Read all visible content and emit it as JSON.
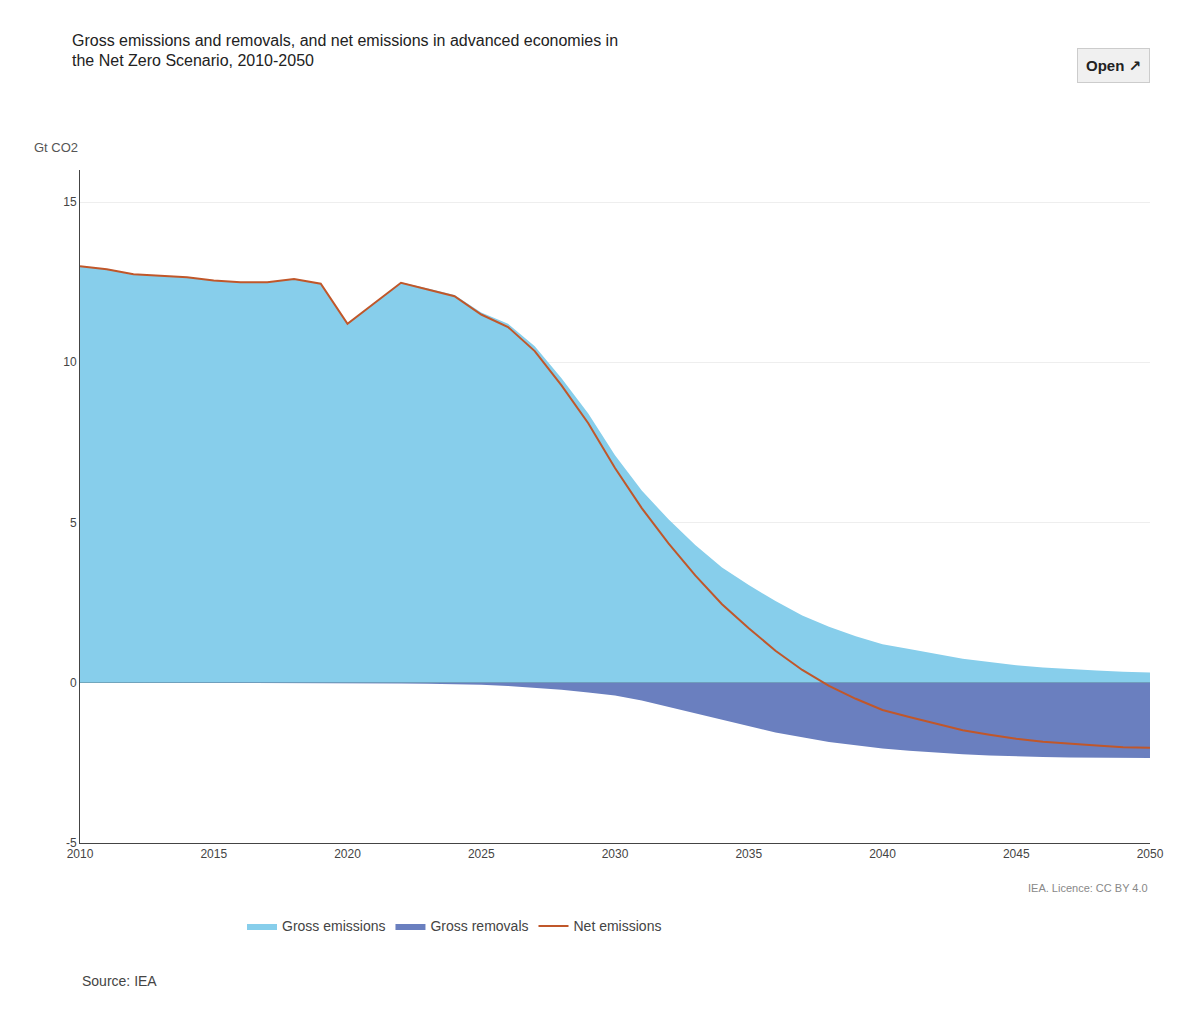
{
  "chart_data": {
    "type": "area",
    "title": "Gross emissions and removals, and net emissions in advanced economies in",
    "subtitle": "the Net Zero Scenario, 2010-2050",
    "ylabel": "Gt CO2",
    "annotations": [
      "Source: IEA",
      "IEA. Licence: CC BY 4.0",
      "Open ↗"
    ],
    "x": [
      2010,
      2011,
      2012,
      2013,
      2014,
      2015,
      2016,
      2017,
      2018,
      2019,
      2020,
      2021,
      2022,
      2023,
      2024,
      2025,
      2026,
      2027,
      2028,
      2029,
      2030,
      2031,
      2032,
      2033,
      2034,
      2035,
      2036,
      2037,
      2038,
      2039,
      2040,
      2041,
      2042,
      2043,
      2044,
      2045,
      2046,
      2047,
      2048,
      2049,
      2050
    ],
    "series": [
      {
        "name": "Gross emissions",
        "type": "area",
        "color": "#87CEEB",
        "values": [
          13.0,
          12.9,
          12.75,
          12.7,
          12.65,
          12.55,
          12.5,
          12.5,
          12.6,
          12.45,
          11.2,
          11.85,
          12.5,
          12.3,
          12.1,
          11.55,
          11.2,
          10.5,
          9.5,
          8.4,
          7.1,
          6.0,
          5.1,
          4.3,
          3.6,
          3.05,
          2.55,
          2.1,
          1.75,
          1.45,
          1.2,
          1.05,
          0.9,
          0.75,
          0.65,
          0.55,
          0.48,
          0.42,
          0.38,
          0.34,
          0.32
        ]
      },
      {
        "name": "Gross removals",
        "type": "area",
        "color": "#6A7FBF",
        "values": [
          0.0,
          0.0,
          0.0,
          0.0,
          0.0,
          0.0,
          0.0,
          0.0,
          0.0,
          0.0,
          0.0,
          -0.01,
          -0.02,
          -0.03,
          -0.04,
          -0.06,
          -0.1,
          -0.15,
          -0.22,
          -0.3,
          -0.4,
          -0.55,
          -0.75,
          -0.95,
          -1.15,
          -1.35,
          -1.55,
          -1.7,
          -1.85,
          -1.95,
          -2.05,
          -2.12,
          -2.18,
          -2.23,
          -2.27,
          -2.3,
          -2.32,
          -2.33,
          -2.34,
          -2.35,
          -2.35
        ]
      },
      {
        "name": "Net emissions",
        "type": "line",
        "color": "#C0572A",
        "values": [
          13.0,
          12.9,
          12.75,
          12.7,
          12.65,
          12.55,
          12.5,
          12.5,
          12.6,
          12.45,
          11.2,
          11.84,
          12.48,
          12.27,
          12.06,
          11.49,
          11.1,
          10.35,
          9.28,
          8.1,
          6.7,
          5.45,
          4.35,
          3.35,
          2.45,
          1.7,
          1.0,
          0.4,
          -0.1,
          -0.5,
          -0.85,
          -1.07,
          -1.28,
          -1.48,
          -1.62,
          -1.75,
          -1.84,
          -1.91,
          -1.96,
          -2.01,
          -2.03
        ]
      }
    ],
    "xlim": [
      2010,
      2050
    ],
    "xticks": [
      2010,
      2015,
      2020,
      2025,
      2030,
      2035,
      2040,
      2045,
      2050
    ],
    "ylim": [
      -5,
      16
    ],
    "yticks": [
      -5,
      0,
      5,
      10,
      15
    ],
    "grid": "y",
    "legend": "bottom"
  }
}
